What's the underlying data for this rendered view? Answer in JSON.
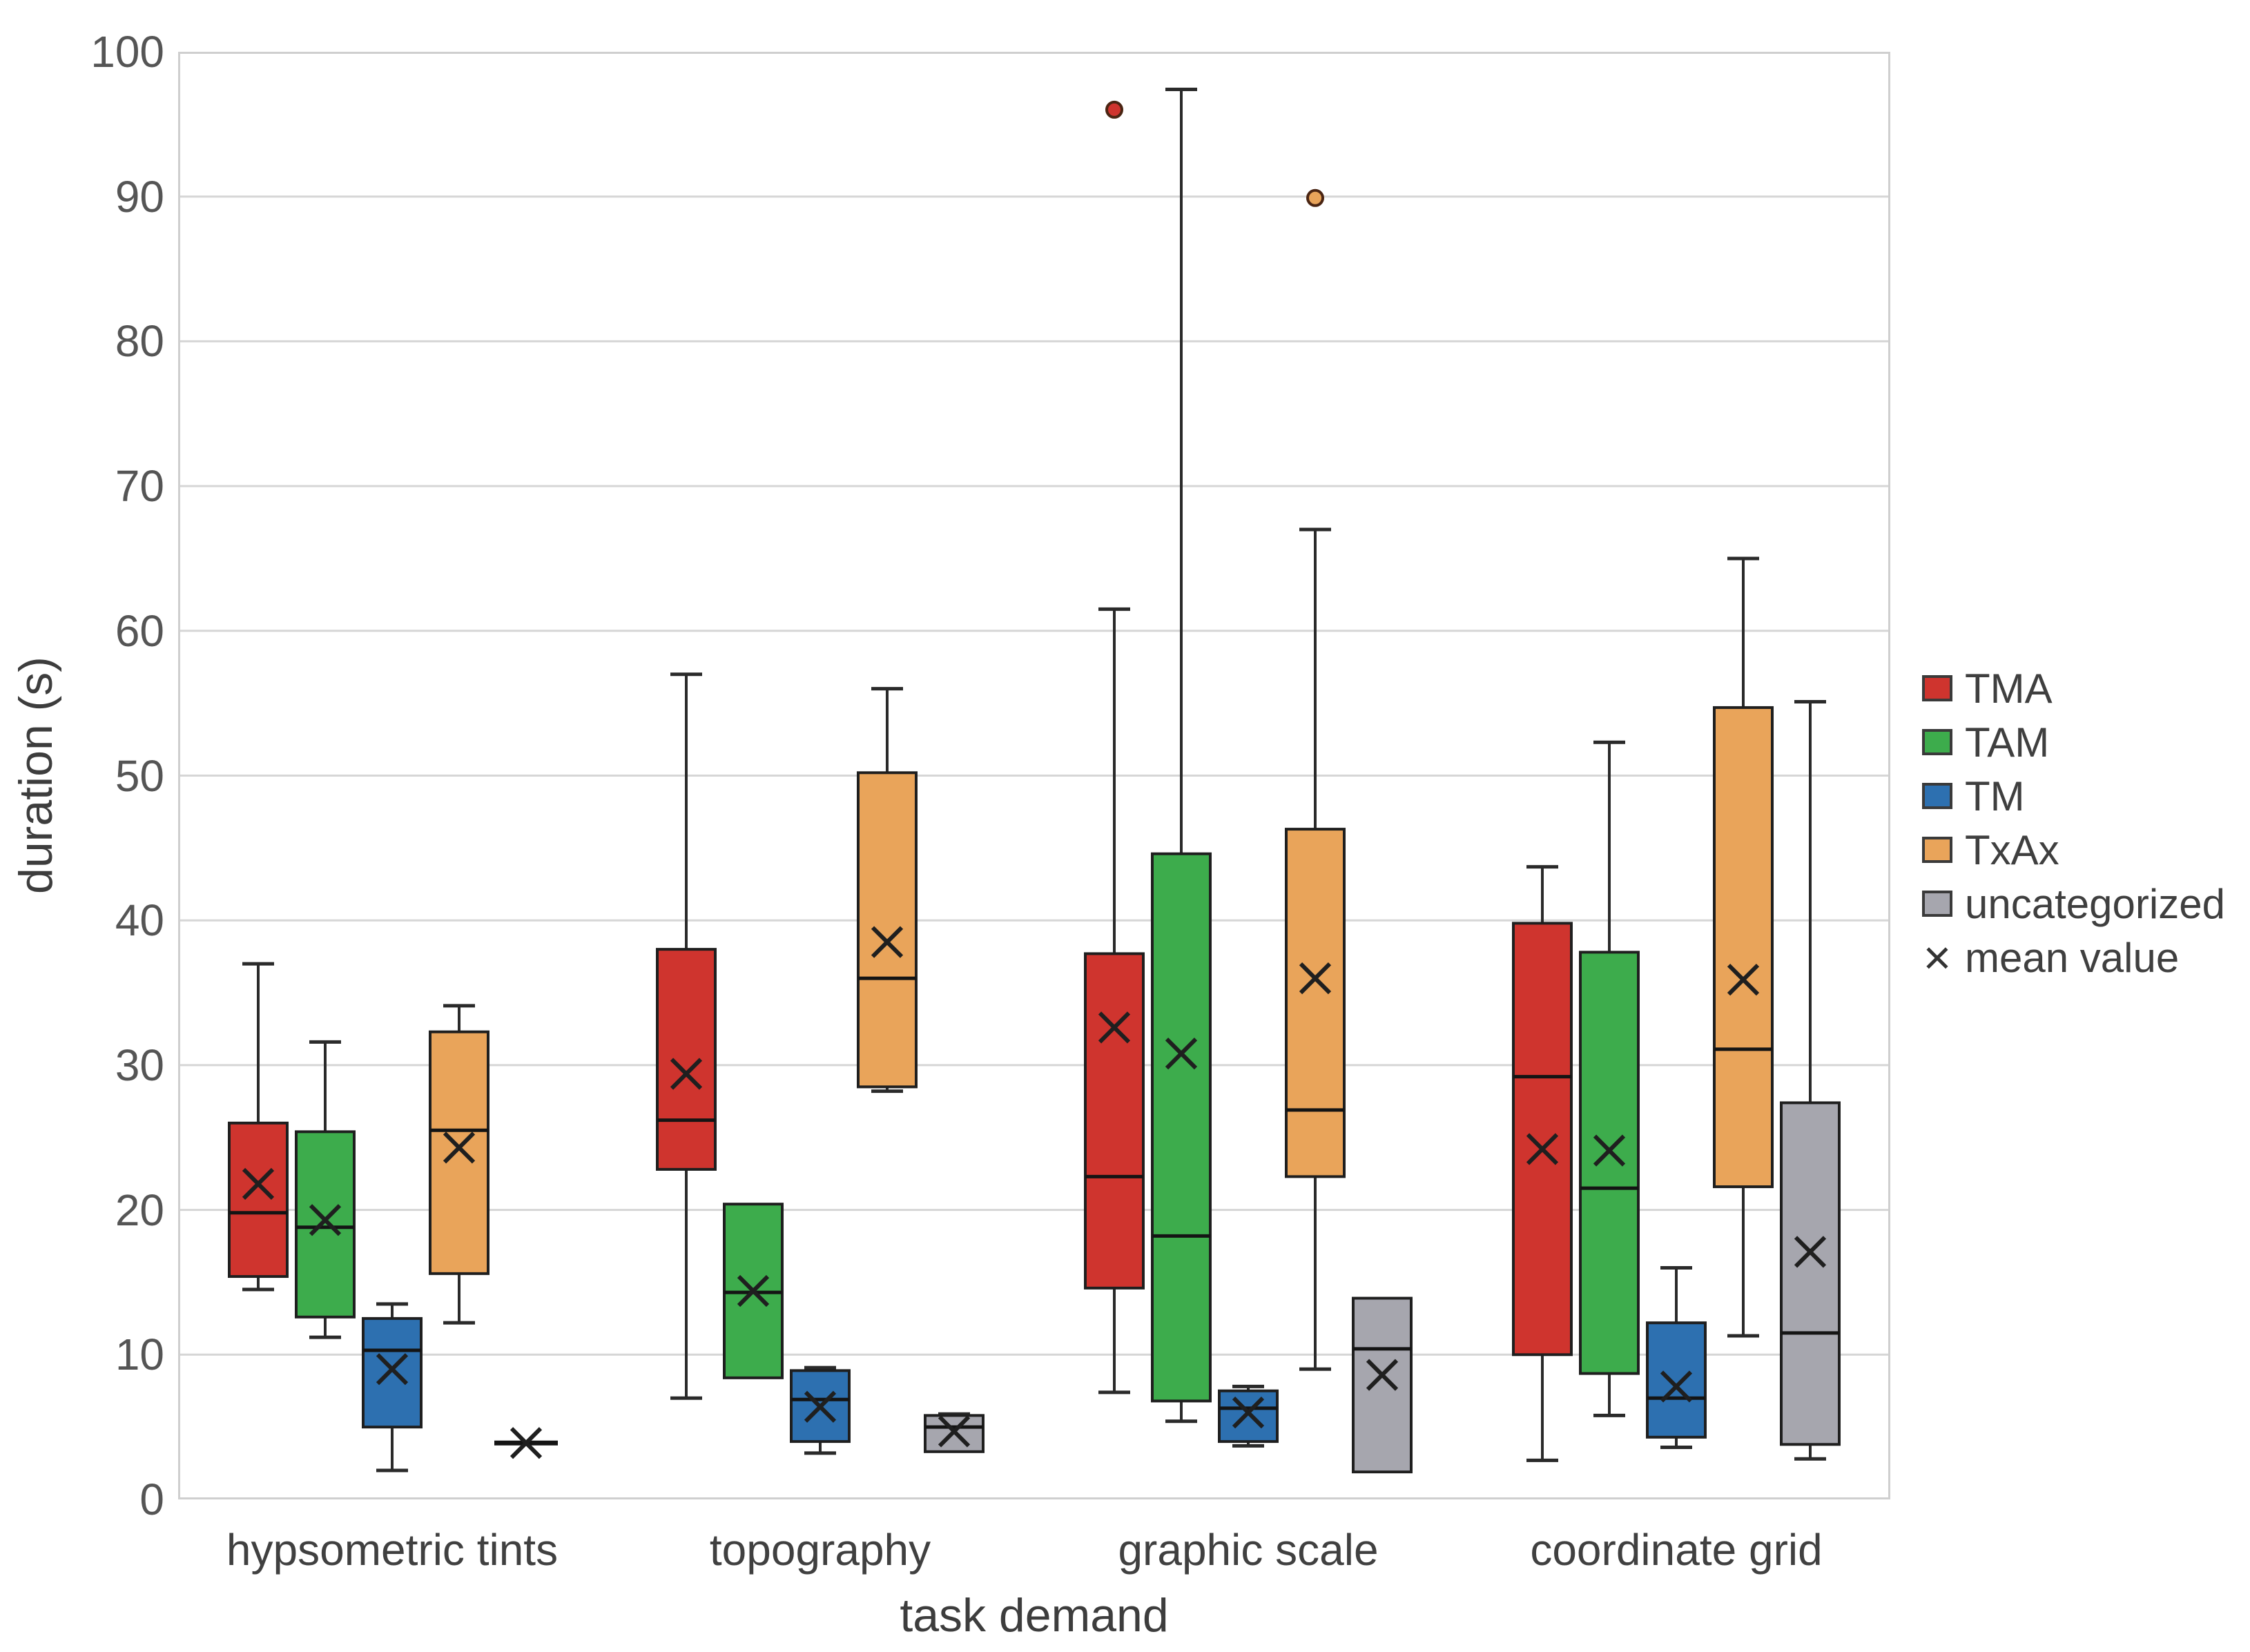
{
  "figure": {
    "background": "#ffffff"
  },
  "legend": {
    "items": [
      {
        "label": "TMA",
        "color": "#cf342e"
      },
      {
        "label": "TAM",
        "color": "#3dac4c"
      },
      {
        "label": "TM",
        "color": "#2d70b0"
      },
      {
        "label": "TxAx",
        "color": "#e9a45a"
      },
      {
        "label": "uncategorized",
        "color": "#a6a6ae"
      }
    ],
    "mean_label": "mean value",
    "mean_symbol": "×"
  },
  "chart_data": {
    "type": "boxplot",
    "title": "",
    "xlabel": "task demand",
    "ylabel": "duration (s)",
    "ylim": [
      0,
      100
    ],
    "ytick_step": 10,
    "ytick_labels": [
      "0",
      "10",
      "20",
      "30",
      "40",
      "50",
      "60",
      "70",
      "80",
      "90",
      "100"
    ],
    "grid": true,
    "legend_position": "right",
    "categories": [
      "hypsometric tints",
      "topography",
      "graphic scale",
      "coordinate grid"
    ],
    "series": [
      {
        "name": "TMA",
        "color": "#cf342e",
        "boxes": [
          {
            "whislo": 14.5,
            "q1": 15.4,
            "med": 19.8,
            "q3": 26.0,
            "whishi": 37.0,
            "mean": 21.8,
            "outliers": []
          },
          {
            "whislo": 7.0,
            "q1": 22.8,
            "med": 26.2,
            "q3": 38.0,
            "whishi": 57.0,
            "mean": 29.4,
            "outliers": []
          },
          {
            "whislo": 7.4,
            "q1": 14.6,
            "med": 22.3,
            "q3": 37.7,
            "whishi": 61.5,
            "mean": 32.6,
            "outliers": [
              96.0
            ]
          },
          {
            "whislo": 2.7,
            "q1": 10.0,
            "med": 29.2,
            "q3": 39.8,
            "whishi": 43.7,
            "mean": 24.2,
            "outliers": []
          }
        ]
      },
      {
        "name": "TAM",
        "color": "#3dac4c",
        "boxes": [
          {
            "whislo": 11.2,
            "q1": 12.6,
            "med": 18.8,
            "q3": 25.4,
            "whishi": 31.6,
            "mean": 19.3,
            "outliers": []
          },
          {
            "whislo": 8.4,
            "q1": 8.4,
            "med": 14.3,
            "q3": 20.4,
            "whishi": 20.4,
            "mean": 14.4,
            "outliers": []
          },
          {
            "whislo": 5.4,
            "q1": 6.8,
            "med": 18.2,
            "q3": 44.6,
            "whishi": 97.4,
            "mean": 30.8,
            "outliers": []
          },
          {
            "whislo": 5.8,
            "q1": 8.7,
            "med": 21.5,
            "q3": 37.8,
            "whishi": 52.3,
            "mean": 24.1,
            "outliers": []
          }
        ]
      },
      {
        "name": "TM",
        "color": "#2d70b0",
        "boxes": [
          {
            "whislo": 2.0,
            "q1": 5.0,
            "med": 10.3,
            "q3": 12.5,
            "whishi": 13.5,
            "mean": 9.0,
            "outliers": []
          },
          {
            "whislo": 3.2,
            "q1": 4.0,
            "med": 6.9,
            "q3": 8.9,
            "whishi": 9.1,
            "mean": 6.4,
            "outliers": []
          },
          {
            "whislo": 3.7,
            "q1": 4.0,
            "med": 6.3,
            "q3": 7.5,
            "whishi": 7.8,
            "mean": 6.0,
            "outliers": []
          },
          {
            "whislo": 3.6,
            "q1": 4.3,
            "med": 7.0,
            "q3": 12.2,
            "whishi": 16.0,
            "mean": 7.8,
            "outliers": []
          }
        ]
      },
      {
        "name": "TxAx",
        "color": "#e9a45a",
        "boxes": [
          {
            "whislo": 12.2,
            "q1": 15.6,
            "med": 25.5,
            "q3": 32.3,
            "whishi": 34.1,
            "mean": 24.3,
            "outliers": []
          },
          {
            "whislo": 28.2,
            "q1": 28.5,
            "med": 36.0,
            "q3": 50.2,
            "whishi": 56.0,
            "mean": 38.5,
            "outliers": []
          },
          {
            "whislo": 9.0,
            "q1": 22.3,
            "med": 26.9,
            "q3": 46.3,
            "whishi": 67.0,
            "mean": 36.0,
            "outliers": [
              89.9
            ]
          },
          {
            "whislo": 11.3,
            "q1": 21.6,
            "med": 31.1,
            "q3": 54.7,
            "whishi": 65.0,
            "mean": 35.9,
            "outliers": []
          }
        ]
      },
      {
        "name": "uncategorized",
        "color": "#a6a6ae",
        "boxes": [
          {
            "whislo": 3.9,
            "q1": 3.9,
            "med": 3.9,
            "q3": 3.9,
            "whishi": 3.9,
            "mean": 3.9,
            "outliers": []
          },
          {
            "whislo": 3.3,
            "q1": 3.3,
            "med": 5.0,
            "q3": 5.8,
            "whishi": 5.9,
            "mean": 4.7,
            "outliers": []
          },
          {
            "whislo": 1.9,
            "q1": 1.9,
            "med": 10.4,
            "q3": 13.9,
            "whishi": 13.9,
            "mean": 8.6,
            "outliers": []
          },
          {
            "whislo": 2.8,
            "q1": 3.8,
            "med": 11.5,
            "q3": 27.4,
            "whishi": 55.1,
            "mean": 17.1,
            "outliers": []
          }
        ]
      }
    ]
  }
}
